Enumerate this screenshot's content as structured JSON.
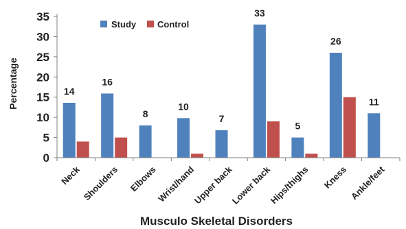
{
  "chart_data": {
    "type": "bar",
    "title": "",
    "xlabel": "Musculo Skeletal Disorders",
    "ylabel": "Percentage",
    "ylim": [
      0,
      35
    ],
    "yticks": [
      0,
      5,
      10,
      15,
      20,
      25,
      30,
      35
    ],
    "categories": [
      "Neck",
      "Shoulders",
      "Elbows",
      "Wrist/hand",
      "Upper back",
      "Lower back",
      "Hips/thighs",
      "Kness",
      "Ankle/feet"
    ],
    "series": [
      {
        "name": "Study",
        "color": "#4F81BD",
        "values": [
          13.6,
          15.9,
          8,
          9.8,
          6.8,
          33,
          5,
          26,
          11
        ]
      },
      {
        "name": "Control",
        "color": "#C0504D",
        "values": [
          4,
          5,
          0,
          1,
          0,
          9,
          1,
          15,
          0
        ]
      }
    ],
    "data_labels": [
      "14",
      "16",
      "8",
      "10",
      "7",
      "33",
      "5",
      "26",
      "11"
    ],
    "legend_position": "top-left",
    "grid": false
  }
}
